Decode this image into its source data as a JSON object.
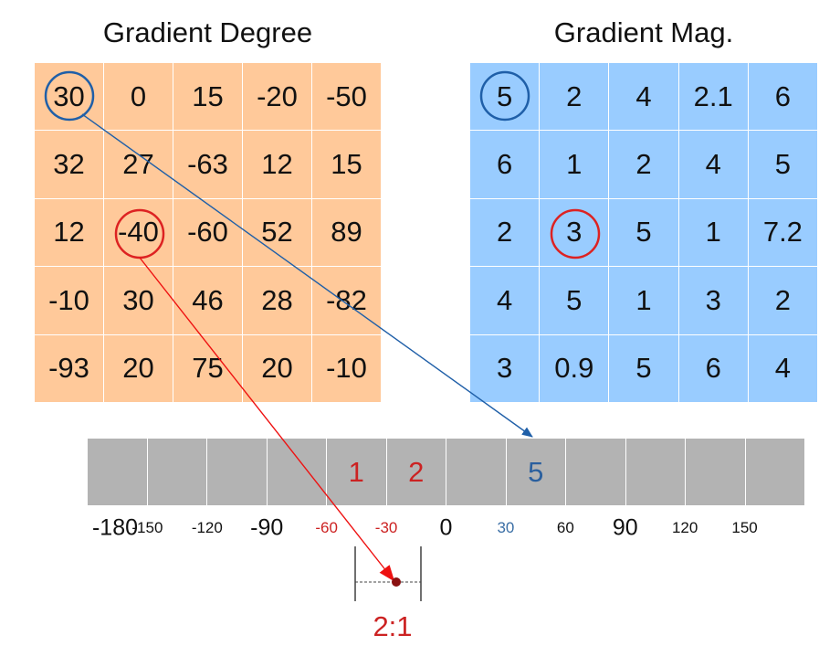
{
  "titles": {
    "degree": "Gradient Degree",
    "magnitude": "Gradient Mag."
  },
  "degree_grid": [
    [
      "30",
      "0",
      "15",
      "-20",
      "-50"
    ],
    [
      "32",
      "27",
      "-63",
      "12",
      "15"
    ],
    [
      "12",
      "-40",
      "-60",
      "52",
      "89"
    ],
    [
      "-10",
      "30",
      "46",
      "28",
      "-82"
    ],
    [
      "-93",
      "20",
      "75",
      "20",
      "-10"
    ]
  ],
  "magnitude_grid": [
    [
      "5",
      "2",
      "4",
      "2.1",
      "6"
    ],
    [
      "6",
      "1",
      "2",
      "4",
      "5"
    ],
    [
      "2",
      "3",
      "5",
      "1",
      "7.2"
    ],
    [
      "4",
      "5",
      "1",
      "3",
      "2"
    ],
    [
      "3",
      "0.9",
      "5",
      "6",
      "4"
    ]
  ],
  "highlight": {
    "blue": {
      "row": 0,
      "col": 0,
      "color": "#1f5fa8"
    },
    "red": {
      "row": 2,
      "col": 1,
      "color": "#dd2222"
    }
  },
  "histogram": {
    "bins": [
      "",
      "",
      "",
      "",
      "1",
      "2",
      "",
      "5",
      "",
      "",
      "",
      ""
    ],
    "bin_colors": [
      "",
      "",
      "",
      "",
      "#cc2222",
      "#cc2222",
      "",
      "#2a5f9e",
      "",
      "",
      "",
      ""
    ]
  },
  "ticks": [
    {
      "label": "-180",
      "size": "big",
      "color": "#111111"
    },
    {
      "label": "-150",
      "size": "small",
      "color": "#111111"
    },
    {
      "label": "-120",
      "size": "small",
      "color": "#111111"
    },
    {
      "label": "-90",
      "size": "big",
      "color": "#111111"
    },
    {
      "label": "-60",
      "size": "small",
      "color": "#cc2222"
    },
    {
      "label": "-30",
      "size": "small",
      "color": "#cc2222"
    },
    {
      "label": "0",
      "size": "big",
      "color": "#111111"
    },
    {
      "label": "30",
      "size": "small",
      "color": "#3a6ea5"
    },
    {
      "label": "60",
      "size": "small",
      "color": "#111111"
    },
    {
      "label": "90",
      "size": "big",
      "color": "#111111"
    },
    {
      "label": "120",
      "size": "small",
      "color": "#111111"
    },
    {
      "label": "150",
      "size": "small",
      "color": "#111111"
    }
  ],
  "ratio_label": "2:1",
  "colors": {
    "degree_cell": "#ffc99a",
    "magnitude_cell": "#99ccff",
    "bin": "#b3b3b3",
    "blue_arrow": "#1f5fa8",
    "red_arrow": "#ee1111"
  }
}
